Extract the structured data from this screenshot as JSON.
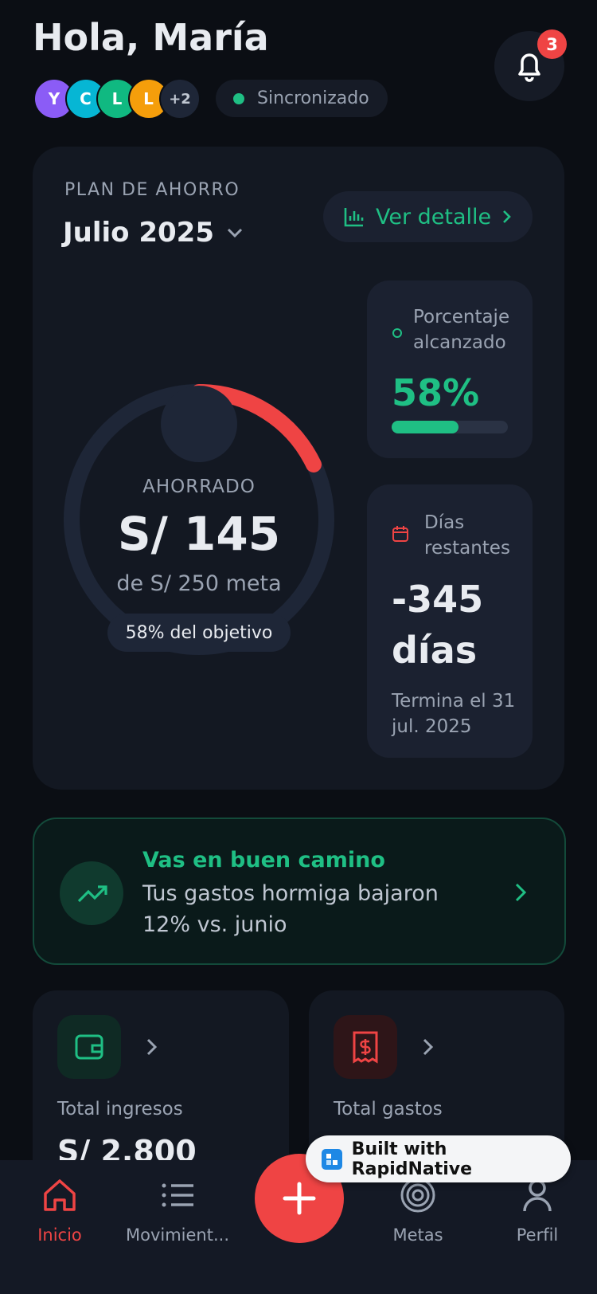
{
  "header": {
    "greeting": "Hola, María",
    "avatars": [
      "Y",
      "C",
      "L",
      "L",
      "+2"
    ],
    "sync_status": "Sincronizado",
    "notification_count": "3"
  },
  "plan": {
    "label": "PLAN DE AHORRO",
    "month": "Julio 2025",
    "detail_button": "Ver detalle",
    "saved_label": "AHORRADO",
    "saved_amount": "S/ 145",
    "goal_text": "de S/ 250 meta",
    "progress_badge": "58% del objetivo",
    "percent_card": {
      "label": "Porcentaje alcanzado",
      "value": "58%"
    },
    "days_card": {
      "label": "Días restantes",
      "value": "-345 días",
      "end_text": "Termina el 31 jul. 2025"
    }
  },
  "insight": {
    "title": "Vas en buen camino",
    "text": "Tus gastos hormiga bajaron 12% vs. junio"
  },
  "summary_cards": [
    {
      "label": "Total ingresos",
      "amount": "S/ 2,800"
    },
    {
      "label": "Total gastos"
    }
  ],
  "badge": "Built with RapidNative",
  "nav": [
    {
      "label": "Inicio"
    },
    {
      "label": "Movimient..."
    },
    {
      "label": "Metas"
    },
    {
      "label": "Perfil"
    }
  ]
}
